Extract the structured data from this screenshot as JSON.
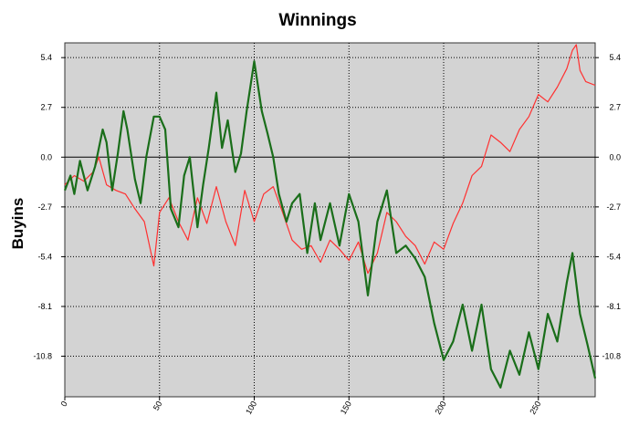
{
  "chart_data": {
    "type": "line",
    "title": "Winnings",
    "xlabel": "",
    "ylabel": "Buyins",
    "xlim": [
      0,
      280
    ],
    "ylim": [
      -13,
      6.2
    ],
    "x_ticks": [
      0,
      50,
      100,
      150,
      200,
      250
    ],
    "x_tick_labels": [
      "0",
      "50",
      "100",
      "150",
      "200",
      "250"
    ],
    "y_ticks": [
      5.4,
      2.7,
      0.0,
      -2.7,
      -5.4,
      -8.1,
      -10.8
    ],
    "y_tick_labels": [
      "5.4",
      "2.7",
      "0.0",
      "-2.7",
      "-5.4",
      "-8.1",
      "-10.8"
    ],
    "grid": true,
    "legend": "none",
    "background_color": "#d3d3d3",
    "series": [
      {
        "color": "#ff3030",
        "x": [
          0,
          5,
          10,
          15,
          18,
          22,
          27,
          32,
          37,
          42,
          47,
          50,
          55,
          60,
          65,
          70,
          75,
          80,
          85,
          90,
          95,
          100,
          105,
          110,
          115,
          120,
          125,
          130,
          135,
          140,
          145,
          150,
          155,
          160,
          165,
          170,
          175,
          180,
          185,
          190,
          195,
          200,
          205,
          210,
          215,
          220,
          225,
          230,
          235,
          240,
          245,
          250,
          255,
          260,
          265,
          268,
          270,
          272,
          275,
          280
        ],
        "y": [
          -1.5,
          -1.0,
          -1.3,
          -0.8,
          0.0,
          -1.5,
          -1.8,
          -2.0,
          -2.8,
          -3.5,
          -5.9,
          -3.0,
          -2.2,
          -3.5,
          -4.5,
          -2.2,
          -3.6,
          -1.6,
          -3.5,
          -4.8,
          -1.8,
          -3.5,
          -2.0,
          -1.6,
          -3.0,
          -4.5,
          -5.0,
          -4.8,
          -5.7,
          -4.5,
          -5.0,
          -5.6,
          -4.6,
          -6.3,
          -5.2,
          -3.0,
          -3.5,
          -4.3,
          -4.8,
          -5.8,
          -4.6,
          -5.0,
          -3.6,
          -2.5,
          -1.0,
          -0.5,
          1.2,
          0.8,
          0.3,
          1.5,
          2.2,
          3.4,
          3.0,
          3.8,
          4.8,
          5.8,
          6.1,
          4.7,
          4.1,
          3.9
        ]
      },
      {
        "color": "#1a6e1a",
        "x": [
          0,
          3,
          5,
          8,
          12,
          16,
          20,
          22,
          25,
          28,
          31,
          33,
          37,
          40,
          43,
          47,
          50,
          53,
          56,
          60,
          63,
          66,
          70,
          73,
          76,
          80,
          83,
          86,
          90,
          93,
          96,
          100,
          104,
          107,
          110,
          113,
          117,
          120,
          124,
          128,
          132,
          135,
          140,
          145,
          150,
          155,
          160,
          165,
          170,
          175,
          180,
          185,
          190,
          195,
          200,
          205,
          210,
          215,
          220,
          225,
          230,
          235,
          240,
          245,
          250,
          255,
          260,
          265,
          268,
          272,
          276,
          280
        ],
        "y": [
          -1.8,
          -1.0,
          -2.0,
          -0.2,
          -1.8,
          -0.5,
          1.5,
          0.8,
          -1.8,
          0.2,
          2.5,
          1.5,
          -1.2,
          -2.5,
          0.0,
          2.2,
          2.2,
          1.5,
          -2.8,
          -3.8,
          -1.0,
          0.0,
          -3.8,
          -1.5,
          0.5,
          3.5,
          0.5,
          2.0,
          -0.8,
          0.2,
          2.5,
          5.2,
          2.5,
          1.3,
          0.0,
          -2.0,
          -3.5,
          -2.5,
          -2.0,
          -5.2,
          -2.5,
          -4.5,
          -2.5,
          -4.8,
          -2.0,
          -3.5,
          -7.5,
          -3.5,
          -1.8,
          -5.2,
          -4.8,
          -5.5,
          -6.5,
          -9.0,
          -11.0,
          -10.0,
          -8.0,
          -10.5,
          -8.0,
          -11.5,
          -12.5,
          -10.5,
          -11.8,
          -9.5,
          -11.5,
          -8.5,
          -10.0,
          -6.8,
          -5.2,
          -8.5,
          -10.2,
          -12.0
        ]
      }
    ]
  }
}
